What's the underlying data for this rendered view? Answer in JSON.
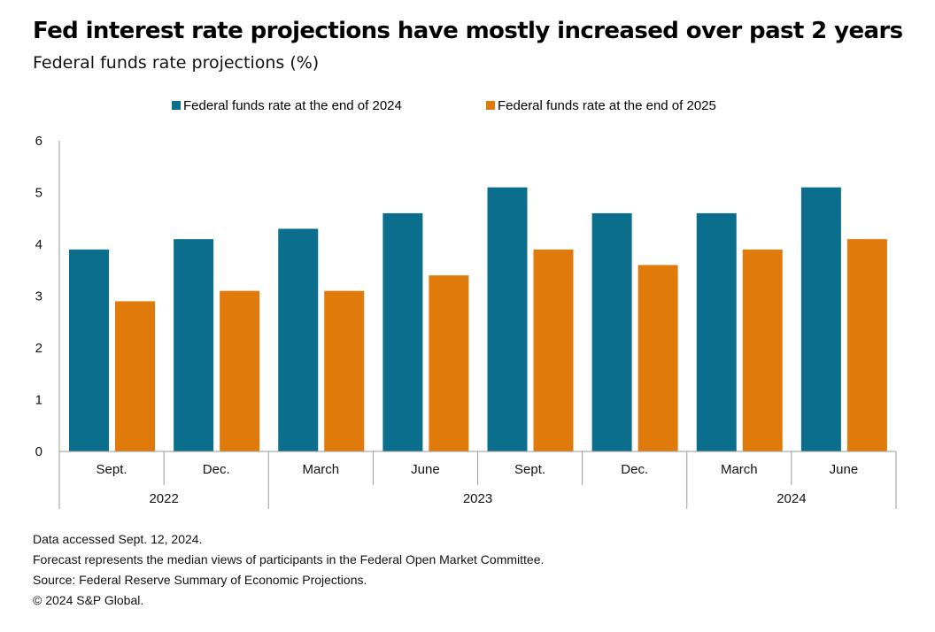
{
  "title": "Fed interest rate projections have mostly increased over past 2 years",
  "subtitle": "Federal funds rate projections (%)",
  "colors": {
    "series_2024": "#0a6e8c",
    "series_2025": "#e07b0b",
    "axis": "#9a9a9a"
  },
  "chart_data": {
    "type": "bar",
    "categories": [
      "Sept.",
      "Dec.",
      "March",
      "June",
      "Sept.",
      "Dec.",
      "March",
      "June"
    ],
    "groups": [
      {
        "label": "2022",
        "span": 2
      },
      {
        "label": "2023",
        "span": 4
      },
      {
        "label": "2024",
        "span": 2
      }
    ],
    "series": [
      {
        "name": "Federal funds rate at the end of 2024",
        "values": [
          3.9,
          4.1,
          4.3,
          4.6,
          5.1,
          4.6,
          4.6,
          5.1
        ]
      },
      {
        "name": "Federal funds rate at the end of 2025",
        "values": [
          2.9,
          3.1,
          3.1,
          3.4,
          3.9,
          3.6,
          3.9,
          4.1
        ]
      }
    ],
    "yticks": [
      0,
      1,
      2,
      3,
      4,
      5,
      6
    ],
    "ylim": [
      0,
      6
    ],
    "legend_position": "top",
    "grid": false
  },
  "footnotes": [
    "Data accessed Sept. 12, 2024.",
    "Forecast represents the median views of participants in the Federal Open Market Committee.",
    "Source: Federal Reserve Summary of Economic Projections.",
    "© 2024 S&P Global."
  ]
}
